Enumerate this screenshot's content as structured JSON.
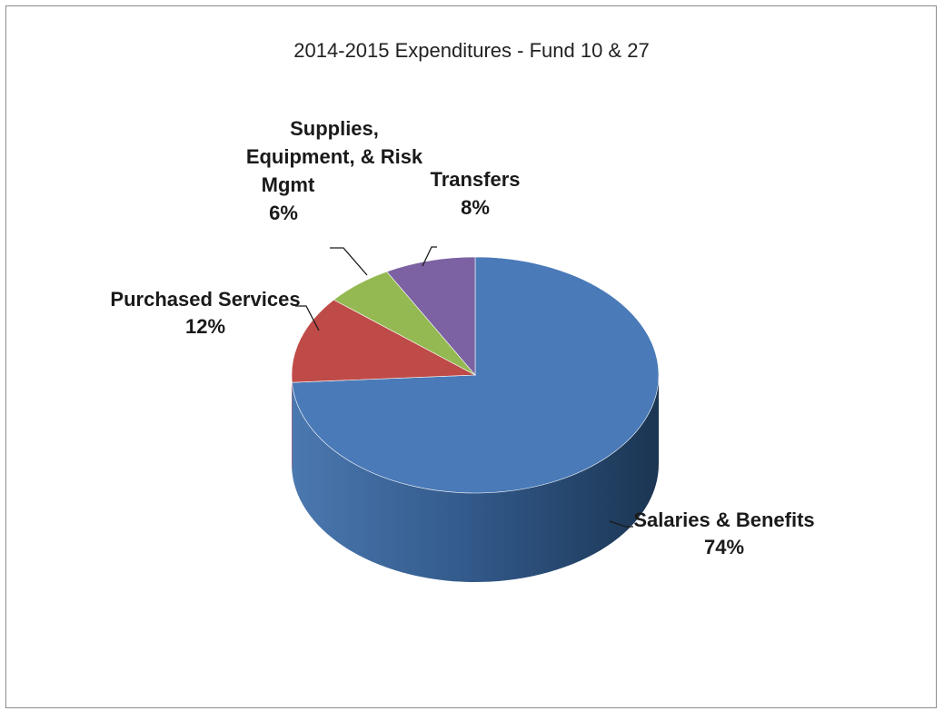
{
  "chart_data": {
    "type": "pie",
    "title": "2014-2015 Expenditures - Fund 10 & 27",
    "three_d": true,
    "legend": "none",
    "slices": [
      {
        "label_lines": [
          "Salaries & Benefits"
        ],
        "percent_label": "74%",
        "value": 74,
        "color": "#4a7ab8"
      },
      {
        "label_lines": [
          "Purchased Services"
        ],
        "percent_label": "12%",
        "value": 12,
        "color": "#bf4b48"
      },
      {
        "label_lines": [
          "Supplies,",
          "Equipment, & Risk",
          "Mgmt"
        ],
        "percent_label": "6%",
        "value": 6,
        "color": "#94b952"
      },
      {
        "label_lines": [
          "Transfers"
        ],
        "percent_label": "8%",
        "value": 8,
        "color": "#7c62a2"
      }
    ]
  }
}
